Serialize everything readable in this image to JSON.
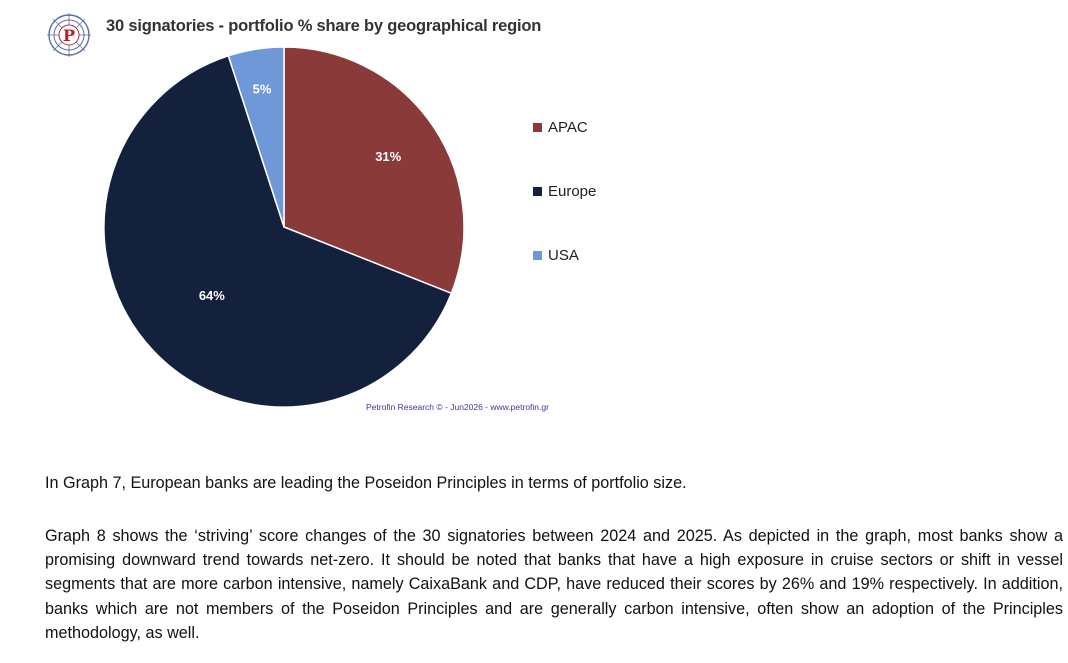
{
  "chart_data": {
    "type": "pie",
    "title": "30 signatories - portfolio % share by geographical region",
    "slices": [
      {
        "label": "APAC",
        "value": 31,
        "display": "31%",
        "color": "#8B3A3A"
      },
      {
        "label": "Europe",
        "value": 64,
        "display": "64%",
        "color": "#14213D"
      },
      {
        "label": "USA",
        "value": 5,
        "display": "5%",
        "color": "#6F98D8"
      }
    ],
    "legend_position": "right",
    "source": "Petrofin Research © - Jun2026 - www.petrofin.gr"
  },
  "text": {
    "paragraph1": "In Graph 7, European banks are leading the Poseidon Principles in terms of portfolio size.",
    "paragraph2": "Graph 8 shows the ‘striving’ score changes of the 30 signatories between 2024 and 2025. As depicted in the graph, most banks show a promising downward trend towards net-zero. It should be noted that banks that have a high exposure in cruise sectors or shift in vessel segments that are more carbon intensive, namely CaixaBank and CDP, have reduced their scores by 26% and 19% respectively.  In addition, banks which are not members of the Poseidon Principles and are generally carbon intensive, often show an adoption of the Principles methodology, as well."
  },
  "logo": {
    "letter": "P",
    "icon": "petrofin-logo"
  }
}
